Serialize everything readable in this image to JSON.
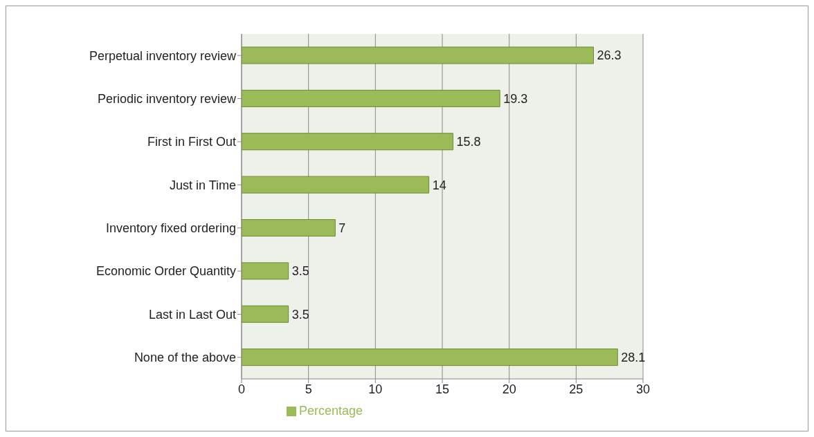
{
  "chart_data": {
    "type": "bar",
    "orientation": "horizontal",
    "categories": [
      "Perpetual inventory review",
      "Periodic inventory review",
      "First in First Out",
      "Just in Time",
      "Inventory fixed ordering",
      "Economic Order Quantity",
      "Last in Last Out",
      "None of the above"
    ],
    "series": [
      {
        "name": "Percentage",
        "color": "#9bbb59",
        "values": [
          26.3,
          19.3,
          15.8,
          14,
          7,
          3.5,
          3.5,
          28.1
        ]
      }
    ],
    "xlim": [
      0,
      30
    ],
    "xticks": [
      0,
      5,
      10,
      15,
      20,
      25,
      30
    ],
    "grid": "x",
    "legend": "bottom",
    "data_labels": true
  }
}
